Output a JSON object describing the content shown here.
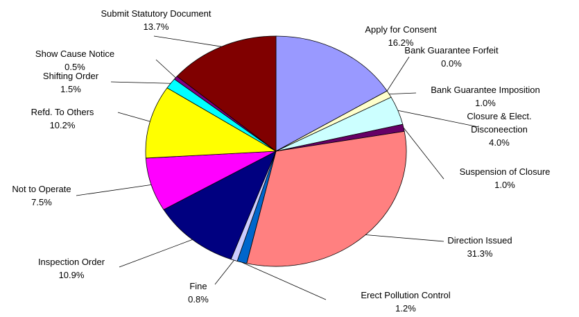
{
  "chart_data": {
    "type": "pie",
    "categories": [
      "Apply for Consent",
      "Bank Guarantee Forfeit",
      "Bank Guarantee Imposition",
      "Closure & Elect. Disconeection",
      "Suspension of Closure",
      "Direction Issued",
      "Erect Pollution Control",
      "Fine",
      "Inspection Order",
      "Not to Operate",
      "Refd. To Others",
      "Shifting Order",
      "Show Cause Notice",
      "Submit Statutory Document"
    ],
    "values": [
      16.2,
      0.0,
      1.0,
      4.0,
      1.0,
      31.3,
      1.2,
      0.8,
      10.9,
      7.5,
      10.2,
      1.5,
      0.5,
      13.7
    ],
    "value_labels": [
      "16.2%",
      "0.0%",
      "1.0%",
      "4.0%",
      "1.0%",
      "31.3%",
      "1.2%",
      "0.8%",
      "10.9%",
      "7.5%",
      "10.2%",
      "1.5%",
      "0.5%",
      "13.7%"
    ],
    "colors": [
      "#9999ff",
      "#993366",
      "#ffffcc",
      "#ccffff",
      "#660066",
      "#ff8080",
      "#0066cc",
      "#ccccff",
      "#000080",
      "#ff00ff",
      "#ffff00",
      "#00ffff",
      "#800080",
      "#800000"
    ]
  }
}
